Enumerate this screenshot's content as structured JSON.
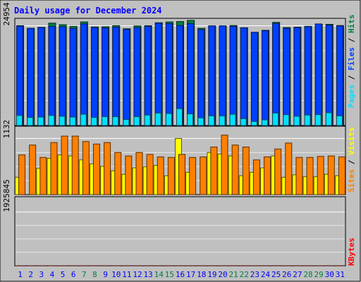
{
  "chart_data": {
    "type": "bar",
    "title": "Daily usage for December 2024",
    "categories": [
      "1",
      "2",
      "3",
      "4",
      "5",
      "6",
      "7",
      "8",
      "9",
      "10",
      "11",
      "12",
      "13",
      "14",
      "15",
      "16",
      "17",
      "18",
      "19",
      "20",
      "21",
      "22",
      "23",
      "24",
      "25",
      "26",
      "27",
      "28",
      "29",
      "30",
      "31"
    ],
    "weekend_days": [
      "7",
      "8",
      "14",
      "15",
      "21",
      "22",
      "28",
      "29"
    ],
    "panels": [
      {
        "id": "hits",
        "y_tick_label": "24954",
        "y_tick_value": 24954,
        "ylim": [
          0,
          26800
        ],
        "series": [
          {
            "name": "Hits",
            "color": "#008040",
            "values": [
              24950,
              24300,
              24550,
              25600,
              25200,
              24800,
              25900,
              24650,
              24700,
              24950,
              24200,
              24900,
              24950,
              25700,
              25900,
              26000,
              26300,
              24300,
              24900,
              24900,
              25000,
              24450,
              23300,
              23800,
              25800,
              24500,
              24600,
              24800,
              25300,
              25300,
              25000
            ]
          },
          {
            "name": "Files",
            "color": "#0040ff",
            "values": [
              24850,
              24300,
              24500,
              24800,
              24700,
              24300,
              25400,
              24500,
              24400,
              24600,
              24000,
              24500,
              24800,
              25600,
              25500,
              25000,
              25500,
              24000,
              24900,
              24900,
              24800,
              24400,
              23300,
              23700,
              25500,
              24300,
              24500,
              24700,
              25400,
              25100,
              24900
            ]
          },
          {
            "name": "Pages",
            "color": "#00e0ff",
            "values": [
              2500,
              2000,
              2100,
              2500,
              2300,
              2100,
              2800,
              2000,
              2200,
              2200,
              1500,
              2200,
              2600,
              3100,
              3000,
              4200,
              2900,
              1900,
              2400,
              2400,
              2800,
              1700,
              1000,
              1400,
              3100,
              2700,
              2300,
              2600,
              2700,
              3200,
              2400
            ]
          }
        ]
      },
      {
        "id": "visits",
        "y_tick_label": "1132",
        "y_tick_value": 1132,
        "ylim": [
          0,
          1380
        ],
        "series": [
          {
            "name": "Visits",
            "color": "#ffff00",
            "values": [
              350,
              0,
              530,
              730,
              800,
              780,
              700,
              620,
              570,
              480,
              410,
              540,
              560,
              590,
              380,
              1132,
              450,
              0,
              850,
              820,
              780,
              380,
              450,
              540,
              780,
              350,
              400,
              360,
              360,
              410,
              380
            ]
          },
          {
            "name": "Sites",
            "color": "#ff8000",
            "values": [
              800,
              1000,
              750,
              1050,
              1180,
              1180,
              1070,
              1020,
              1050,
              850,
              780,
              850,
              810,
              760,
              750,
              810,
              750,
              760,
              960,
              1200,
              1000,
              960,
              700,
              760,
              920,
              1040,
              750,
              750,
              770,
              780,
              760
            ]
          }
        ]
      },
      {
        "id": "kbytes",
        "y_tick_label": "1925845",
        "y_tick_value": 1925845,
        "ylim": [
          0,
          2475000
        ],
        "series": [
          {
            "name": "KBytes",
            "color": "#ff0000",
            "values": [
              1780,
              1780,
              1900,
              1805,
              1805,
              1790,
              1850,
              1770,
              1775,
              1800,
              1790,
              1900,
              1900,
              1950,
              2050,
              1900,
              1950,
              1820,
              1870,
              1910,
              2300,
              2230,
              1860,
              1955,
              2080,
              1900,
              1940,
              1965,
              2115,
              1930,
              1930
            ]
          }
        ]
      }
    ],
    "right_labels": {
      "hits_panel": [
        "Pages",
        "Files",
        "Hits"
      ],
      "visits_panel": [
        "Sites",
        "Visits"
      ],
      "kbytes_panel": [
        "KBytes"
      ]
    },
    "colors": {
      "background": "#c0c0c0",
      "title": "#0000ff",
      "grid": "#ffffff",
      "weekday_label": "#0000ff",
      "weekend_label": "#008040"
    }
  }
}
